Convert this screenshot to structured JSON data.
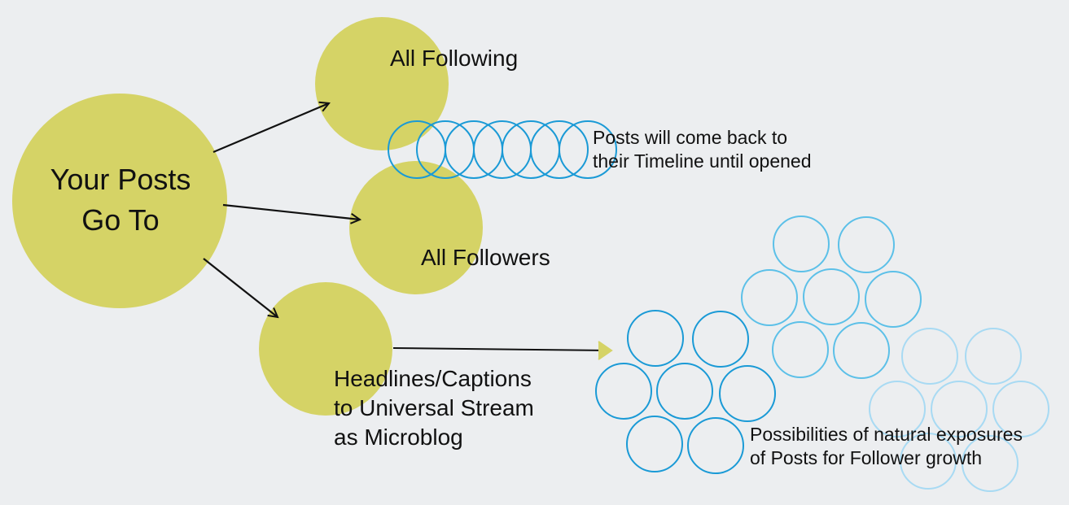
{
  "colors": {
    "background": "#eceef0",
    "node_fill": "#d5d366",
    "ring_dark": "#1a9ad6",
    "ring_mid": "#55bde6",
    "ring_light": "#9fd6f2",
    "arrow": "#111111"
  },
  "nodes": {
    "your_posts": {
      "line1": "Your Posts",
      "line2": "Go To"
    },
    "all_following": {
      "label": "All Following"
    },
    "all_followers": {
      "label": "All Followers"
    },
    "headlines": {
      "line1": "Headlines/Captions",
      "line2": "to Universal Stream",
      "line3": "as Microblog"
    }
  },
  "notes": {
    "timeline": {
      "line1": "Posts will come back to",
      "line2": "their Timeline until opened"
    },
    "exposure": {
      "line1": "Possibilities of natural exposures",
      "line2": "of Posts for Follower growth"
    }
  }
}
